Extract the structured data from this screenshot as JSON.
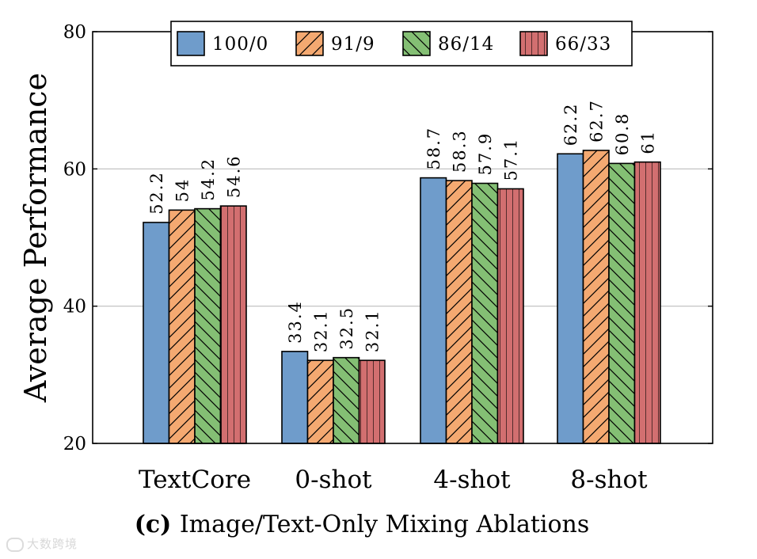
{
  "chart_data": {
    "type": "bar",
    "title": "",
    "caption_bold": "(c)",
    "caption_text": "Image/Text-Only Mixing Ablations",
    "xlabel": "",
    "ylabel": "Average Performance",
    "ylim": [
      20,
      80
    ],
    "yticks": [
      20,
      40,
      60,
      80
    ],
    "grid": true,
    "legend_position": "top",
    "categories": [
      "TextCore",
      "0-shot",
      "4-shot",
      "8-shot"
    ],
    "series": [
      {
        "name": "100/0",
        "color": "#6f9ccb",
        "hatch": "none",
        "values": [
          52.2,
          33.4,
          58.7,
          62.2
        ],
        "labels": [
          "52.2",
          "33.4",
          "58.7",
          "62.2"
        ]
      },
      {
        "name": "91/9",
        "color": "#f4a971",
        "hatch": "forward",
        "values": [
          54,
          32.1,
          58.3,
          62.7
        ],
        "labels": [
          "54",
          "32.1",
          "58.3",
          "62.7"
        ]
      },
      {
        "name": "86/14",
        "color": "#84bf74",
        "hatch": "backward",
        "values": [
          54.2,
          32.5,
          57.9,
          60.8
        ],
        "labels": [
          "54.2",
          "32.5",
          "57.9",
          "60.8"
        ]
      },
      {
        "name": "66/33",
        "color": "#d26f70",
        "hatch": "vertical",
        "values": [
          54.6,
          32.1,
          57.1,
          61
        ],
        "labels": [
          "54.6",
          "32.1",
          "57.1",
          "61"
        ]
      }
    ]
  },
  "watermark": "大数跨境"
}
